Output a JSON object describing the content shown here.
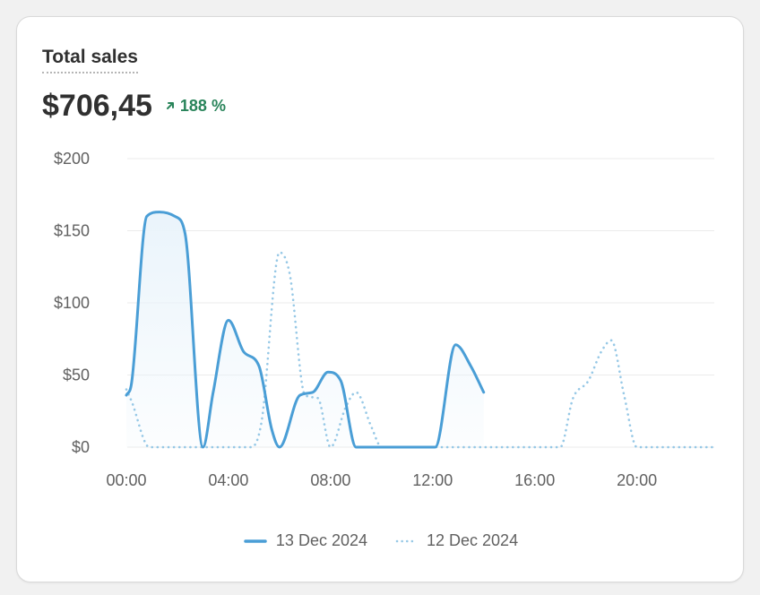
{
  "card": {
    "title": "Total sales",
    "total": "$706,45",
    "change": "188 %",
    "change_icon": "arrow-up-right-icon"
  },
  "colors": {
    "current": "#4a9ed6",
    "previous": "#96c8e6",
    "fill": "#eaf4fb",
    "grid": "#ebebeb",
    "positive": "#29845a"
  },
  "chart_data": {
    "type": "line",
    "x": [
      0,
      1,
      2,
      3,
      4,
      5,
      6,
      7,
      8,
      9,
      10,
      11,
      12,
      13,
      14,
      15,
      16,
      17,
      18,
      19,
      20,
      21,
      22,
      23
    ],
    "x_tick_labels": [
      "00:00",
      "04:00",
      "08:00",
      "12:00",
      "16:00",
      "20:00"
    ],
    "x_tick_values": [
      0,
      4,
      8,
      12,
      16,
      20
    ],
    "y_tick_labels": [
      "$0",
      "$50",
      "$100",
      "$150",
      "$200"
    ],
    "y_tick_values": [
      0,
      50,
      100,
      150,
      200
    ],
    "ylim": [
      0,
      200
    ],
    "grid": true,
    "legend_position": "bottom-center",
    "series": [
      {
        "name": "13 Dec 2024",
        "style": "solid",
        "x": [
          0,
          0.2,
          0.8,
          1.3,
          1.9,
          2.3,
          3.0,
          3.4,
          4.0,
          4.6,
          5.2,
          5.7,
          6.0,
          6.8,
          7.3,
          7.9,
          8.4,
          9.0,
          10,
          11,
          12.1,
          12.9,
          13.5,
          14.0
        ],
        "values": [
          36,
          44,
          160,
          163,
          160,
          148,
          0,
          38,
          88,
          66,
          56,
          12,
          0,
          36,
          38,
          52,
          46,
          0,
          0,
          0,
          0,
          71,
          56,
          38
        ]
      },
      {
        "name": "12 Dec 2024",
        "style": "dotted",
        "x": [
          0,
          0.2,
          0.9,
          2,
          3,
          4,
          4.9,
          5.3,
          6.0,
          6.4,
          7.0,
          7.5,
          8.0,
          8.6,
          9.0,
          9.6,
          10,
          11,
          12,
          13,
          14,
          15,
          16,
          17.0,
          17.5,
          18.1,
          18.6,
          19.0,
          19.5,
          20,
          21,
          22,
          23
        ],
        "values": [
          40,
          32,
          0,
          0,
          0,
          0,
          0,
          18,
          135,
          120,
          36,
          34,
          0,
          28,
          38,
          14,
          0,
          0,
          0,
          0,
          0,
          0,
          0,
          0,
          34,
          46,
          66,
          74,
          36,
          0,
          0,
          0,
          0
        ]
      }
    ]
  }
}
